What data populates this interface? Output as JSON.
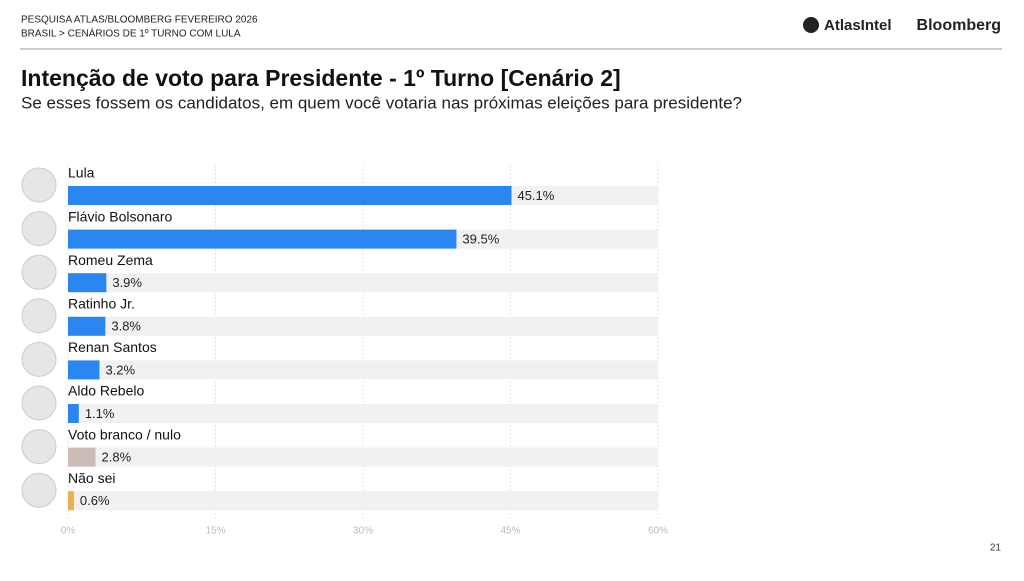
{
  "header": {
    "survey": "PESQUISA ATLAS/BLOOMBERG FEVEREIRO 2026",
    "breadcrumb": "BRASIL > CENÁRIOS DE 1º TURNO COM LULA",
    "logo_left": "AtlasIntel",
    "logo_right": "Bloomberg"
  },
  "page_number": "21",
  "chart_data": {
    "type": "hbar",
    "title": "Intenção de voto para Presidente - 1º Turno [Cenário 2]",
    "subtitle": "Se esses fossem os candidatos, em quem você votaria nas próximas eleições para presidente?",
    "categories": [
      "Lula",
      "Flávio Bolsonaro",
      "Romeu Zema",
      "Ratinho Jr.",
      "Renan Santos",
      "Aldo Rebelo",
      "Voto branco / nulo",
      "Não sei"
    ],
    "values": [
      45.1,
      39.5,
      3.9,
      3.8,
      3.2,
      1.1,
      2.8,
      0.6
    ],
    "value_labels": [
      "45.1%",
      "39.5%",
      "3.9%",
      "3.8%",
      "3.2%",
      "1.1%",
      "2.8%",
      "0.6%"
    ],
    "colors": [
      "#2a86f0",
      "#2a86f0",
      "#2a86f0",
      "#2a86f0",
      "#2a86f0",
      "#2a86f0",
      "#cbbcb7",
      "#e9b04b"
    ],
    "xlim": [
      0,
      60
    ],
    "xticks": [
      {
        "value": 0,
        "label": "0%"
      },
      {
        "value": 15,
        "label": "15%"
      },
      {
        "value": 30,
        "label": "30%"
      },
      {
        "value": 45,
        "label": "45%"
      },
      {
        "value": 60,
        "label": "60%"
      }
    ],
    "grid": true
  }
}
